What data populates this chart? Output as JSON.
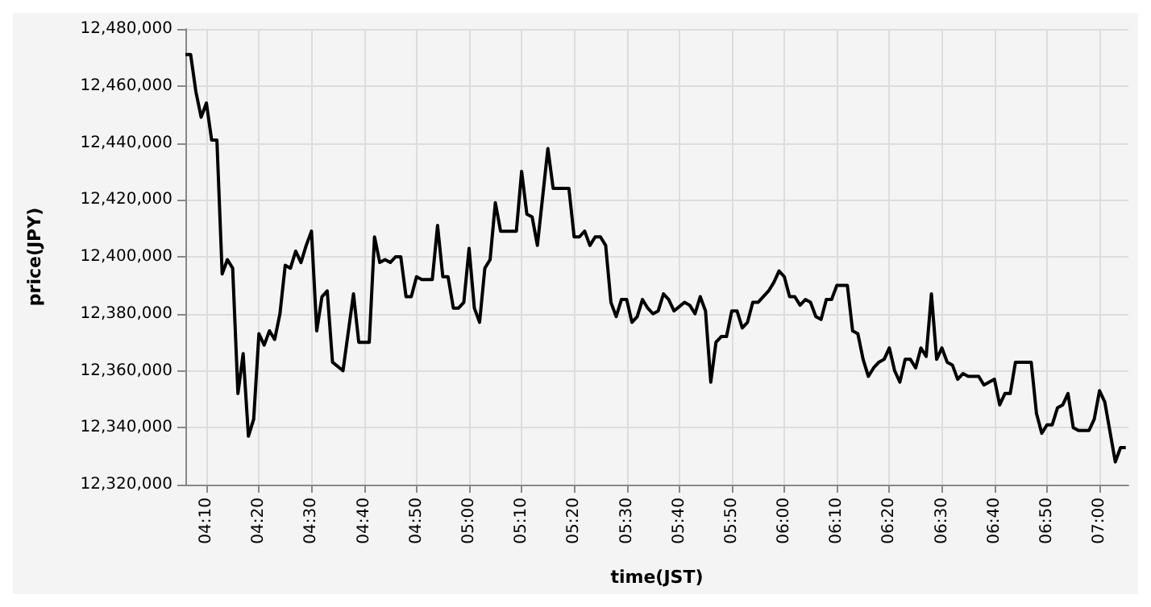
{
  "chart_data": {
    "type": "line",
    "xlabel": "time(JST)",
    "ylabel": "price(JPY)",
    "color": "#000000",
    "marker": "none",
    "line_style": "solid",
    "grid": true,
    "xlim": [
      4.1,
      7.0917
    ],
    "ylim": [
      12320000,
      12480000
    ],
    "xticks": [
      {
        "value": 4.1667,
        "label": "04:10"
      },
      {
        "value": 4.3333,
        "label": "04:20"
      },
      {
        "value": 4.5,
        "label": "04:30"
      },
      {
        "value": 4.6667,
        "label": "04:40"
      },
      {
        "value": 4.8333,
        "label": "04:50"
      },
      {
        "value": 5,
        "label": "05:00"
      },
      {
        "value": 5.1667,
        "label": "05:10"
      },
      {
        "value": 5.3333,
        "label": "05:20"
      },
      {
        "value": 5.5,
        "label": "05:30"
      },
      {
        "value": 5.6667,
        "label": "05:40"
      },
      {
        "value": 5.8333,
        "label": "05:50"
      },
      {
        "value": 6,
        "label": "06:00"
      },
      {
        "value": 6.1667,
        "label": "06:10"
      },
      {
        "value": 6.3333,
        "label": "06:20"
      },
      {
        "value": 6.5,
        "label": "06:30"
      },
      {
        "value": 6.6667,
        "label": "06:40"
      },
      {
        "value": 6.8333,
        "label": "06:50"
      },
      {
        "value": 7,
        "label": "07:00"
      }
    ],
    "yticks": [
      {
        "value": 12320000,
        "label": "12,320,000"
      },
      {
        "value": 12340000,
        "label": "12,340,000"
      },
      {
        "value": 12360000,
        "label": "12,360,000"
      },
      {
        "value": 12380000,
        "label": "12,380,000"
      },
      {
        "value": 12400000,
        "label": "12,400,000"
      },
      {
        "value": 12420000,
        "label": "12,420,000"
      },
      {
        "value": 12440000,
        "label": "12,440,000"
      },
      {
        "value": 12460000,
        "label": "12,460,000"
      },
      {
        "value": 12480000,
        "label": "12,480,000"
      }
    ],
    "x": [
      4.1,
      4.1167,
      4.1333,
      4.15,
      4.1667,
      4.1833,
      4.2,
      4.2167,
      4.2333,
      4.25,
      4.2667,
      4.2833,
      4.3,
      4.3167,
      4.3333,
      4.35,
      4.3667,
      4.3833,
      4.4,
      4.4167,
      4.4333,
      4.45,
      4.4667,
      4.4833,
      4.5,
      4.5167,
      4.5333,
      4.55,
      4.5667,
      4.6,
      4.6333,
      4.65,
      4.6833,
      4.7,
      4.7167,
      4.7333,
      4.75,
      4.7667,
      4.7833,
      4.8,
      4.8167,
      4.8333,
      4.85,
      4.8833,
      4.9,
      4.9167,
      4.9333,
      4.95,
      4.9667,
      4.9833,
      5,
      5.0167,
      5.0333,
      5.05,
      5.0667,
      5.0833,
      5.1,
      5.15,
      5.1667,
      5.1833,
      5.2,
      5.2167,
      5.25,
      5.2667,
      5.3167,
      5.3333,
      5.35,
      5.3667,
      5.3833,
      5.4,
      5.4167,
      5.4333,
      5.45,
      5.4667,
      5.4833,
      5.5,
      5.5167,
      5.5333,
      5.55,
      5.5667,
      5.5833,
      5.6,
      5.6167,
      5.6333,
      5.65,
      5.6833,
      5.7,
      5.7167,
      5.7333,
      5.75,
      5.7667,
      5.7833,
      5.8,
      5.8167,
      5.8333,
      5.85,
      5.8667,
      5.8833,
      5.9,
      5.9167,
      5.95,
      5.9667,
      5.9833,
      6,
      6.0167,
      6.0333,
      6.05,
      6.0667,
      6.0833,
      6.1,
      6.1167,
      6.1333,
      6.15,
      6.1667,
      6.2,
      6.2167,
      6.2333,
      6.25,
      6.2667,
      6.2833,
      6.3,
      6.3167,
      6.3333,
      6.35,
      6.3667,
      6.3833,
      6.4,
      6.4167,
      6.4333,
      6.45,
      6.4667,
      6.4833,
      6.5,
      6.5167,
      6.5333,
      6.55,
      6.5667,
      6.5833,
      6.6167,
      6.6333,
      6.6667,
      6.6833,
      6.7,
      6.7167,
      6.7333,
      6.7833,
      6.8,
      6.8167,
      6.8333,
      6.85,
      6.8667,
      6.8833,
      6.9,
      6.9167,
      6.9333,
      6.9667,
      6.9833,
      7,
      7.0167,
      7.05,
      7.0667,
      7.0833
    ],
    "values": [
      12471000,
      12471000,
      12458000,
      12449000,
      12454000,
      12441000,
      12441000,
      12394000,
      12399000,
      12396000,
      12352000,
      12366000,
      12337000,
      12343000,
      12373000,
      12369000,
      12374000,
      12371000,
      12380000,
      12397000,
      12396000,
      12402000,
      12398000,
      12404000,
      12409000,
      12374000,
      12386000,
      12388000,
      12363000,
      12360000,
      12387000,
      12370000,
      12370000,
      12407000,
      12398000,
      12399000,
      12398000,
      12400000,
      12400000,
      12386000,
      12386000,
      12393000,
      12392000,
      12392000,
      12411000,
      12393000,
      12393000,
      12382000,
      12382000,
      12384000,
      12403000,
      12382000,
      12377000,
      12396000,
      12399000,
      12419000,
      12409000,
      12409000,
      12430000,
      12415000,
      12414000,
      12404000,
      12438000,
      12424000,
      12424000,
      12407000,
      12407000,
      12409000,
      12404000,
      12407000,
      12407000,
      12404000,
      12384000,
      12379000,
      12385000,
      12385000,
      12377000,
      12379000,
      12385000,
      12382000,
      12380000,
      12381000,
      12387000,
      12385000,
      12381000,
      12384000,
      12383000,
      12380000,
      12386000,
      12381000,
      12356000,
      12370000,
      12372000,
      12372000,
      12381000,
      12381000,
      12375000,
      12377000,
      12384000,
      12384000,
      12388000,
      12391000,
      12395000,
      12393000,
      12386000,
      12386000,
      12383000,
      12385000,
      12384000,
      12379000,
      12378000,
      12385000,
      12385000,
      12390000,
      12390000,
      12374000,
      12373000,
      12364000,
      12358000,
      12361000,
      12363000,
      12364000,
      12368000,
      12360000,
      12356000,
      12364000,
      12364000,
      12361000,
      12368000,
      12365000,
      12387000,
      12364000,
      12368000,
      12363000,
      12362000,
      12357000,
      12359000,
      12358000,
      12358000,
      12355000,
      12357000,
      12348000,
      12352000,
      12352000,
      12363000,
      12363000,
      12345000,
      12338000,
      12341000,
      12341000,
      12347000,
      12348000,
      12352000,
      12340000,
      12339000,
      12339000,
      12343000,
      12353000,
      12349000,
      12328000,
      12333000,
      12333000
    ]
  }
}
